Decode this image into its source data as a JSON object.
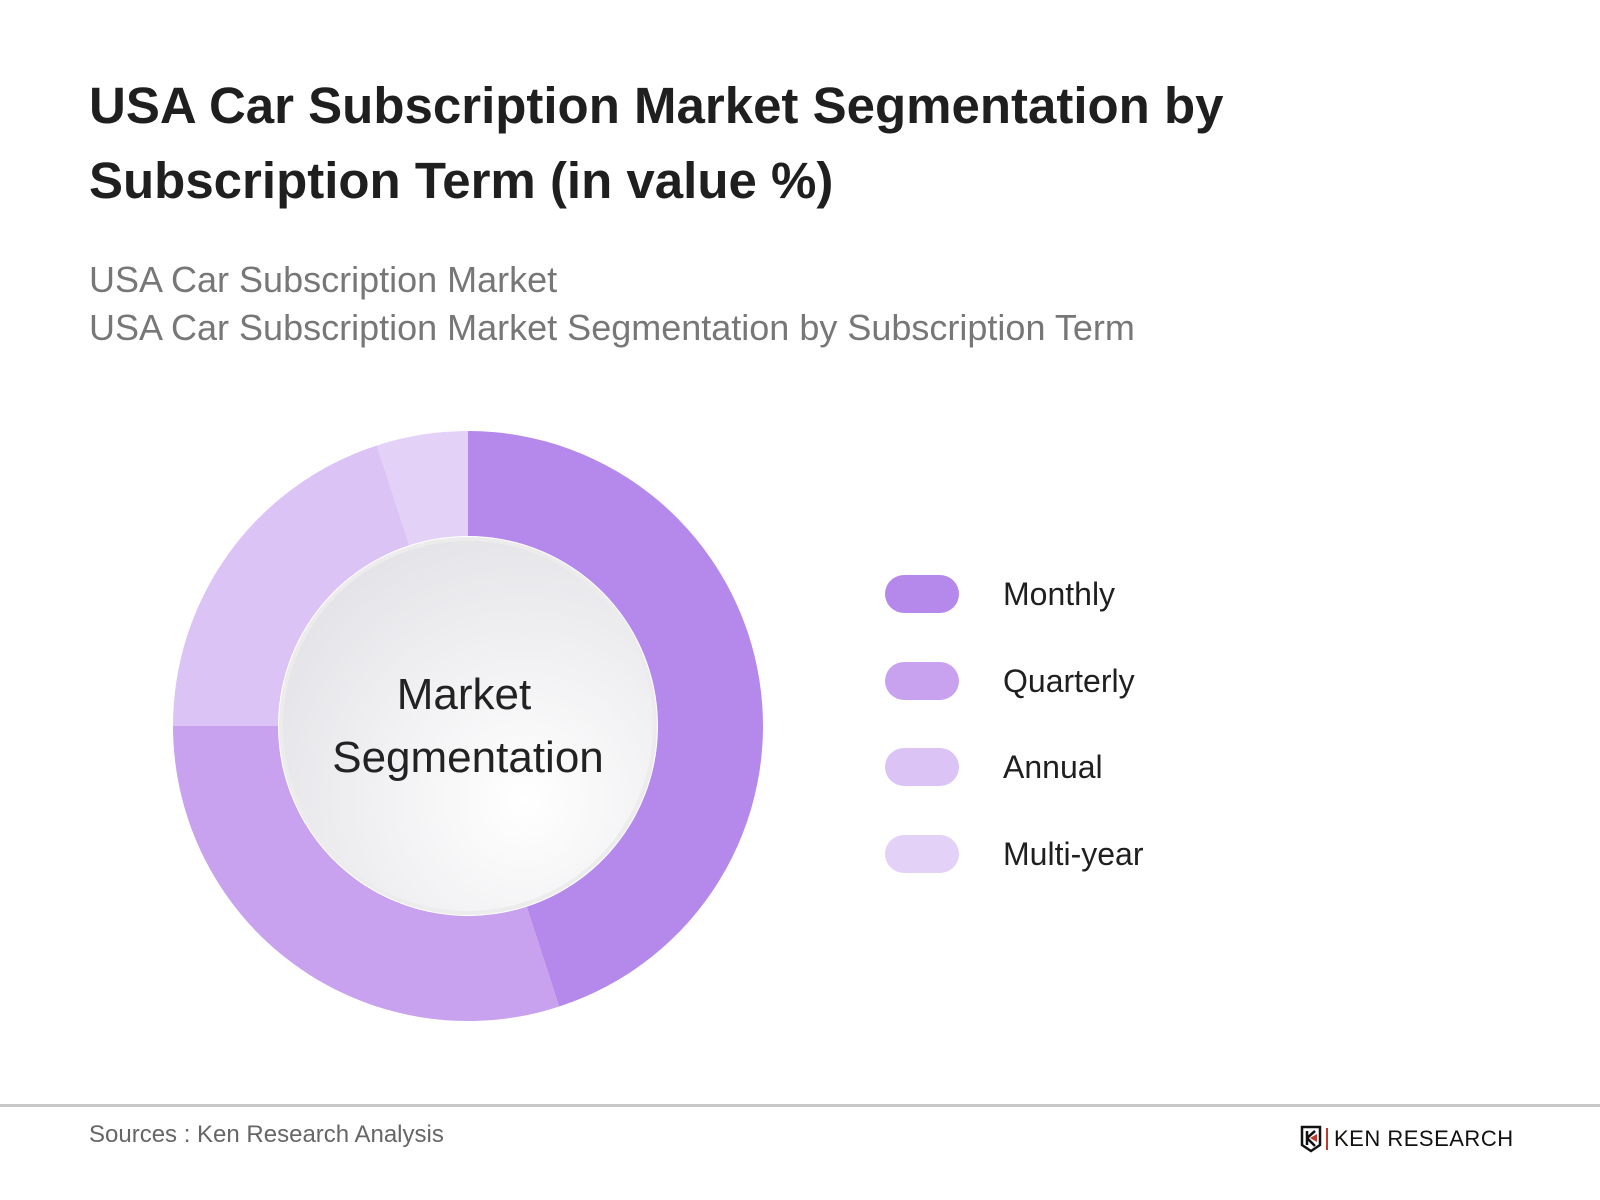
{
  "title": "USA Car Subscription Market Segmentation by Subscription Term (in value %)",
  "subtitle_1": "USA Car Subscription Market",
  "subtitle_2": "USA Car Subscription Market Segmentation by Subscription Term",
  "chart_data": {
    "type": "pie",
    "variant": "donut",
    "center_label": "Market Segmentation",
    "categories": [
      "Monthly",
      "Quarterly",
      "Annual",
      "Multi-year"
    ],
    "values": [
      45,
      30,
      20,
      5
    ],
    "colors": [
      "#b588ec",
      "#c8a1ef",
      "#dcc3f6",
      "#e4d1f8"
    ],
    "legend_position": "right"
  },
  "footer": {
    "source": "Sources : Ken Research Analysis",
    "logo_text": "KEN RESEARCH"
  }
}
